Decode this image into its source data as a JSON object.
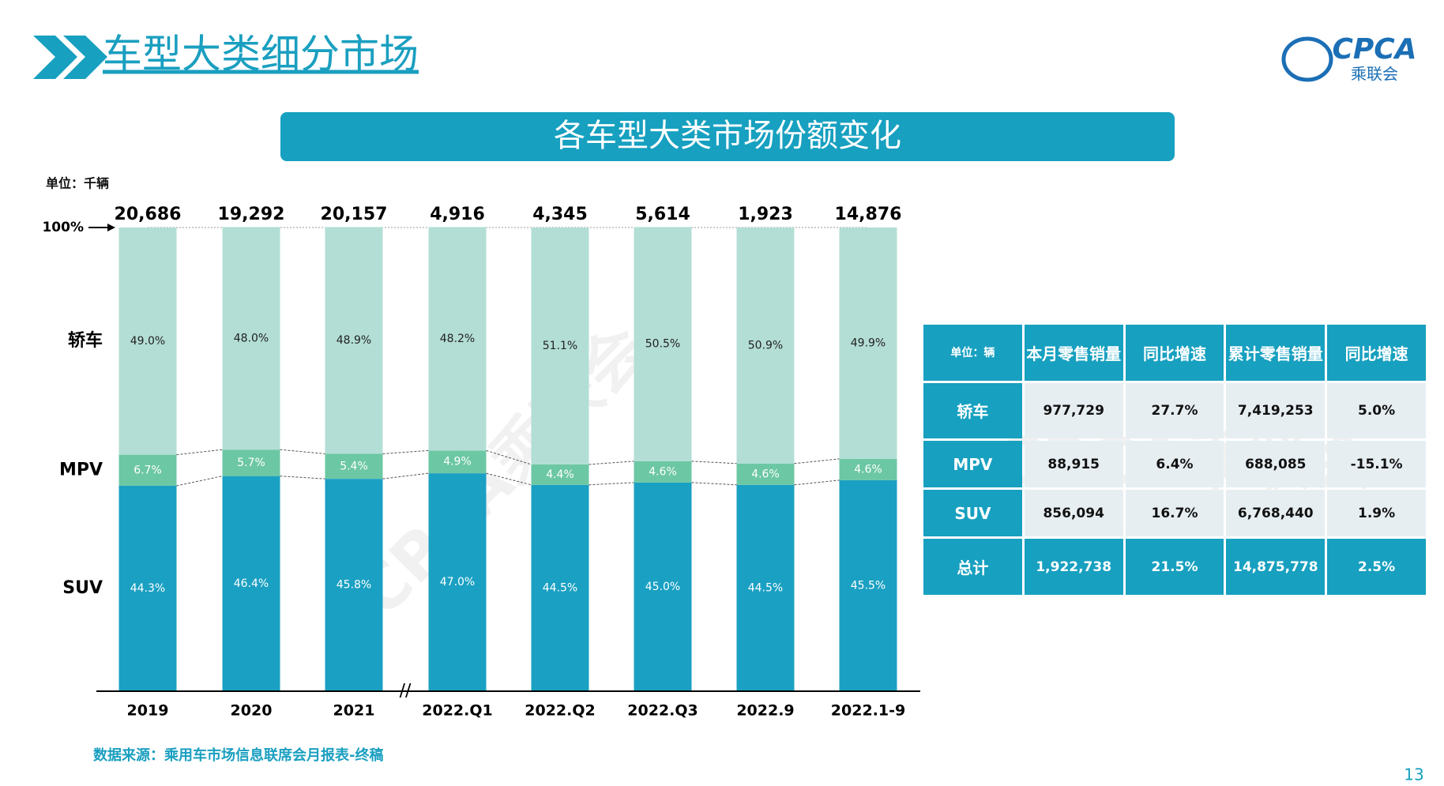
{
  "header": {
    "title": "车型大类细分市场",
    "banner": "各车型大类市场份额变化"
  },
  "logo": {
    "name": "CPCA",
    "subname": "乘联会"
  },
  "watermark": "CPCA乘联会",
  "chart_data": {
    "type": "bar",
    "stacked": true,
    "unit": "单位：千辆",
    "categories": [
      "2019",
      "2020",
      "2021",
      "2022.Q1",
      "2022.Q2",
      "2022.Q3",
      "2022.9",
      "2022.1-9"
    ],
    "series": [
      {
        "name": "SUV",
        "color": "#1aa0c2",
        "values": [
          44.3,
          46.4,
          45.8,
          47.0,
          44.5,
          45.0,
          44.5,
          45.5
        ],
        "value_labels": [
          "44.3%",
          "46.4%",
          "45.8%",
          "47.0%",
          "44.5%",
          "45.0%",
          "44.5%",
          "45.5%"
        ]
      },
      {
        "name": "MPV",
        "color": "#6cc7a4",
        "values": [
          6.7,
          5.7,
          5.4,
          4.9,
          4.4,
          4.6,
          4.6,
          4.6
        ],
        "value_labels": [
          "6.7%",
          "5.7%",
          "5.4%",
          "4.9%",
          "4.4%",
          "4.6%",
          "4.6%",
          "4.6%"
        ]
      },
      {
        "name": "轿车",
        "color": "#b3ded5",
        "values": [
          49.0,
          48.0,
          48.9,
          48.2,
          51.1,
          50.5,
          50.9,
          49.9
        ],
        "value_labels": [
          "49.0%",
          "48.0%",
          "48.9%",
          "48.2%",
          "51.1%",
          "50.5%",
          "50.9%",
          "49.9%"
        ]
      }
    ],
    "totals": {
      "values": [
        20686,
        19292,
        20157,
        4916,
        4345,
        5614,
        1923,
        14876
      ],
      "value_labels": [
        "20,686",
        "19,292",
        "20,157",
        "4,916",
        "4,345",
        "5,614",
        "1,923",
        "14,876"
      ]
    },
    "ylim": [
      0,
      100
    ],
    "yticks": [
      {
        "value": 100,
        "label": "100%"
      }
    ]
  },
  "table": {
    "header": [
      "单位：辆",
      "本月零售销量",
      "同比增速",
      "累计零售销量",
      "同比增速"
    ],
    "rows": [
      [
        "轿车",
        "977,729",
        "27.7%",
        "7,419,253",
        "5.0%"
      ],
      [
        "MPV",
        "88,915",
        "6.4%",
        "688,085",
        "-15.1%"
      ],
      [
        "SUV",
        "856,094",
        "16.7%",
        "6,768,440",
        "1.9%"
      ],
      [
        "总计",
        "1,922,738",
        "21.5%",
        "14,875,778",
        "2.5%"
      ]
    ]
  },
  "source": "数据来源：乘用车市场信息联席会月报表-终稿",
  "page_number": "13"
}
